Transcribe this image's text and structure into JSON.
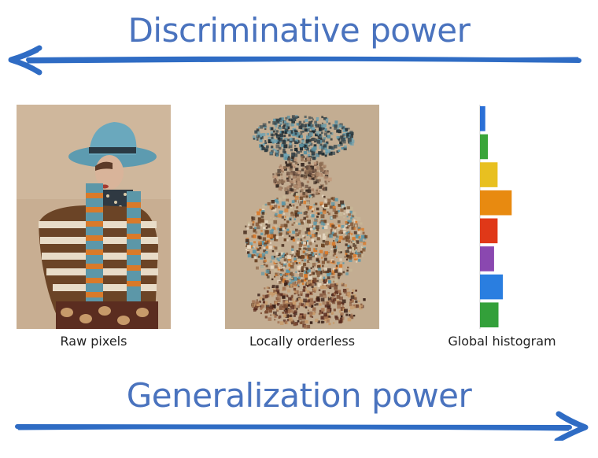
{
  "headings": {
    "top": "Discriminative power",
    "bottom": "Generalization power"
  },
  "panels": {
    "raw_caption": "Raw pixels",
    "orderless_caption": "Locally orderless",
    "histogram_caption": "Global histogram"
  },
  "colors": {
    "heading": "#4a73be",
    "arrow": "#2f6cc4",
    "caption": "#222222"
  },
  "histogram": {
    "bins": [
      {
        "color": "#2a6fd6",
        "value": 0.12
      },
      {
        "color": "#3aa53a",
        "value": 0.18
      },
      {
        "color": "#e8c020",
        "value": 0.4
      },
      {
        "color": "#e88a10",
        "value": 0.72
      },
      {
        "color": "#e03818",
        "value": 0.4
      },
      {
        "color": "#8a48b0",
        "value": 0.32
      },
      {
        "color": "#2a7ee0",
        "value": 0.52
      },
      {
        "color": "#33a03a",
        "value": 0.42
      }
    ]
  }
}
